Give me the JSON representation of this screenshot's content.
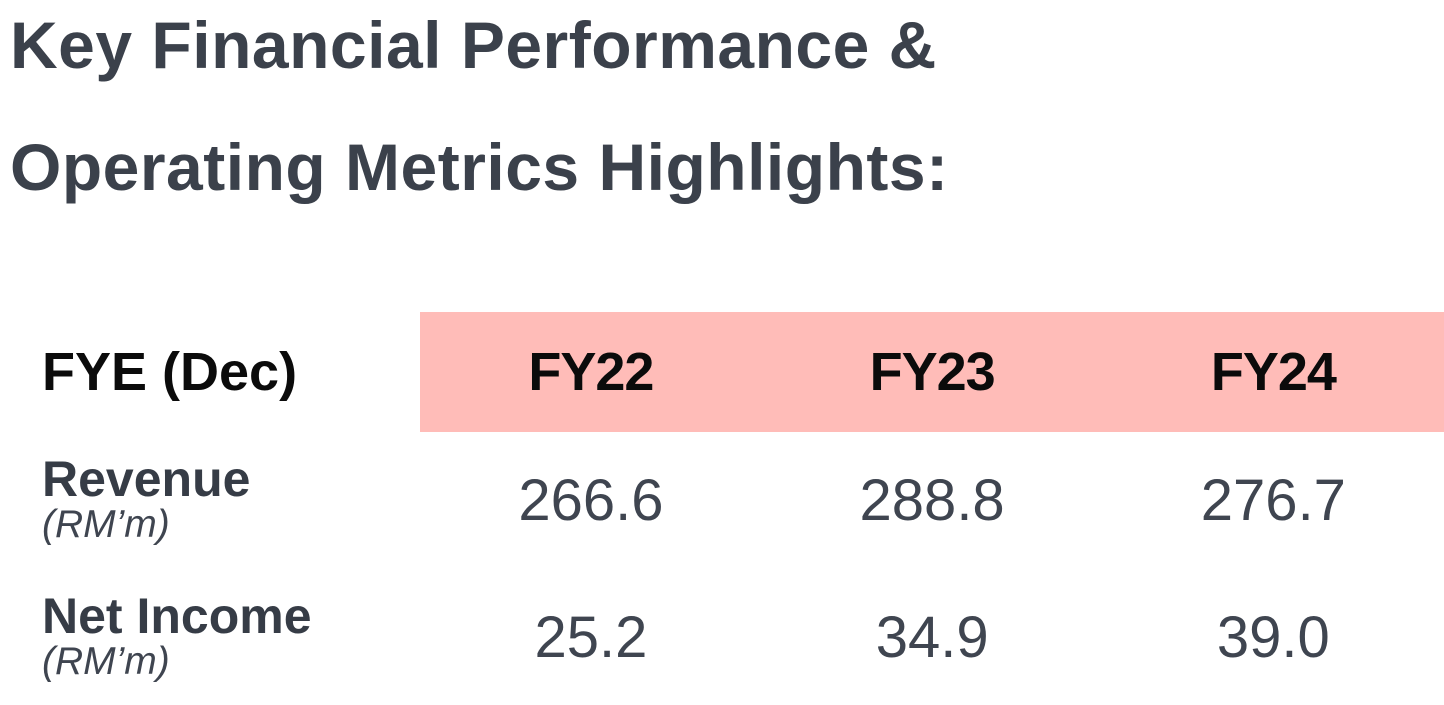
{
  "title": "Key Financial Performance &\nOperating Metrics Highlights:",
  "colors": {
    "title_text": "#3b414b",
    "header_text": "#0b0b0b",
    "header_pink": "#ffbcb8",
    "label_text": "#363c46",
    "value_text": "#3f4550",
    "background": "#ffffff"
  },
  "table": {
    "corner_header": "FYE (Dec)",
    "columns": [
      "FY22",
      "FY23",
      "FY24"
    ],
    "rows": [
      {
        "label": "Revenue",
        "unit": "(RM’m)",
        "values": [
          "266.6",
          "288.8",
          "276.7"
        ]
      },
      {
        "label": "Net Income",
        "unit": "(RM’m)",
        "values": [
          "25.2",
          "34.9",
          "39.0"
        ]
      }
    ]
  },
  "chart_data": {
    "type": "table",
    "title": "Key Financial Performance & Operating Metrics Highlights",
    "row_header": "FYE (Dec)",
    "categories": [
      "FY22",
      "FY23",
      "FY24"
    ],
    "series": [
      {
        "name": "Revenue (RM'm)",
        "values": [
          266.6,
          288.8,
          276.7
        ]
      },
      {
        "name": "Net Income (RM'm)",
        "values": [
          25.2,
          34.9,
          39.0
        ]
      }
    ]
  }
}
